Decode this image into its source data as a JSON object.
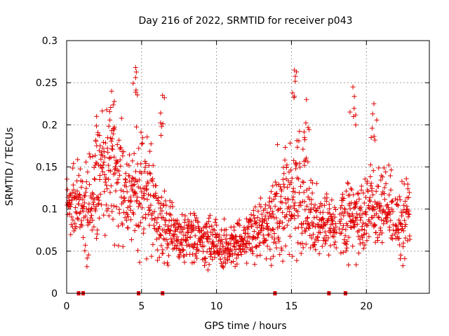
{
  "chart_data": {
    "type": "scatter",
    "title": "Day 216 of 2022, SRMTID for receiver p043",
    "xlabel": "GPS time / hours",
    "ylabel": "SRMTID / TECUs",
    "xlim": [
      0,
      24.2
    ],
    "ylim": [
      0,
      0.3
    ],
    "xticks": [
      0,
      5,
      10,
      15,
      20
    ],
    "xtick_labels": [
      "0",
      "5",
      "10",
      "15",
      "20"
    ],
    "yticks": [
      0,
      0.05,
      0.1,
      0.15,
      0.2,
      0.25,
      0.3
    ],
    "ytick_labels": [
      "0",
      "0.05",
      "0.1",
      "0.15",
      "0.2",
      "0.25",
      "0.3"
    ],
    "grid": true,
    "marker": "plus",
    "color": "#e00000",
    "series_name": "SRMTID",
    "flag_times_hours": [
      0.8,
      1.1,
      4.8,
      6.4,
      13.9,
      17.5,
      18.6
    ],
    "envelope": {
      "t": [
        0,
        0.5,
        1,
        1.5,
        2,
        2.5,
        3,
        3.5,
        4,
        4.5,
        5,
        5.5,
        6,
        6.5,
        7,
        7.5,
        8,
        8.5,
        9,
        9.5,
        10,
        10.5,
        11,
        11.5,
        12,
        12.5,
        13,
        13.5,
        14,
        14.5,
        15,
        15.5,
        16,
        16.5,
        17,
        17.5,
        18,
        18.5,
        19,
        19.5,
        20,
        20.5,
        21,
        21.5,
        22,
        22.5,
        22.9
      ],
      "median": [
        0.11,
        0.1,
        0.11,
        0.1,
        0.13,
        0.15,
        0.15,
        0.14,
        0.12,
        0.12,
        0.13,
        0.11,
        0.1,
        0.08,
        0.075,
        0.07,
        0.07,
        0.065,
        0.06,
        0.06,
        0.055,
        0.055,
        0.055,
        0.06,
        0.065,
        0.07,
        0.075,
        0.08,
        0.1,
        0.11,
        0.12,
        0.12,
        0.1,
        0.085,
        0.085,
        0.08,
        0.08,
        0.085,
        0.09,
        0.09,
        0.09,
        0.1,
        0.1,
        0.1,
        0.09,
        0.09,
        0.1
      ],
      "spread": [
        0.03,
        0.035,
        0.035,
        0.04,
        0.045,
        0.05,
        0.05,
        0.05,
        0.045,
        0.05,
        0.05,
        0.045,
        0.035,
        0.03,
        0.025,
        0.025,
        0.02,
        0.02,
        0.02,
        0.02,
        0.02,
        0.02,
        0.02,
        0.02,
        0.02,
        0.025,
        0.025,
        0.03,
        0.04,
        0.045,
        0.05,
        0.05,
        0.04,
        0.03,
        0.025,
        0.025,
        0.025,
        0.03,
        0.03,
        0.03,
        0.035,
        0.035,
        0.035,
        0.035,
        0.03,
        0.03,
        0.025
      ],
      "peaks": [
        [
          3.0,
          0.24
        ],
        [
          4.6,
          0.268
        ],
        [
          6.4,
          0.235
        ],
        [
          15.2,
          0.265
        ],
        [
          19.1,
          0.245
        ],
        [
          20.5,
          0.225
        ],
        [
          2.0,
          0.21
        ],
        [
          16.0,
          0.23
        ]
      ],
      "data_gaps_hours": [
        [
          18.0,
          18.2
        ],
        [
          21.8,
          21.9
        ]
      ]
    }
  }
}
